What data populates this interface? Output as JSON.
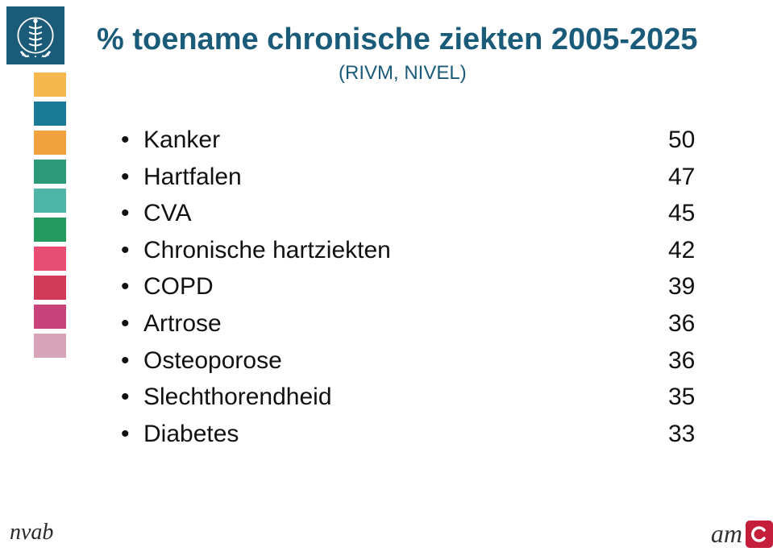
{
  "title": "% toename chronische ziekten 2005-2025",
  "subtitle": "(RIVM, NIVEL)",
  "title_color": "#1a5b7a",
  "subtitle_color": "#1a5b7a",
  "text_color": "#111111",
  "background_color": "#ffffff",
  "title_fontsize": 38,
  "subtitle_fontsize": 24,
  "list_fontsize": 30,
  "sidebar": {
    "logo_bg": "#1a5b7a",
    "colors": [
      "#f5b84e",
      "#1a7b96",
      "#f0a23e",
      "#2a9a78",
      "#4fb5a8",
      "#239a5e",
      "#e84e74",
      "#d13b58",
      "#c7437a",
      "#d7a3b8"
    ],
    "block_height": 30,
    "block_gap": 6
  },
  "items": [
    {
      "label": "Kanker",
      "value": "50"
    },
    {
      "label": "Hartfalen",
      "value": "47"
    },
    {
      "label": "CVA",
      "value": "45"
    },
    {
      "label": "Chronische hartziekten",
      "value": "42"
    },
    {
      "label": "COPD",
      "value": "39"
    },
    {
      "label": "Artrose",
      "value": "36"
    },
    {
      "label": "Osteoporose",
      "value": "36"
    },
    {
      "label": "Slechthorendheid",
      "value": "35"
    },
    {
      "label": "Diabetes",
      "value": "33"
    }
  ],
  "footer": {
    "left_logo_text": "nvab",
    "right_logo_text": "am",
    "right_logo_box_color": "#c41e3a"
  }
}
